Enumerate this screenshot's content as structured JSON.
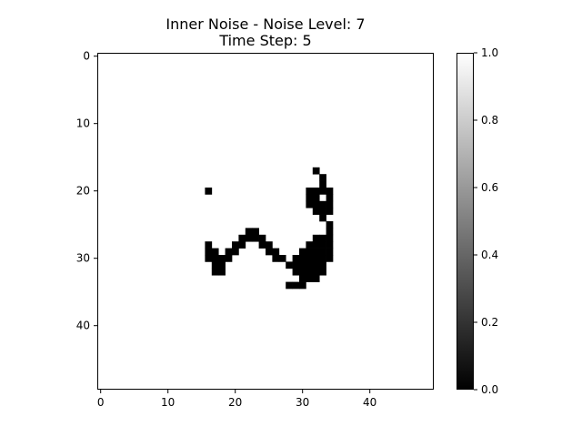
{
  "chart_data": {
    "type": "heatmap",
    "title_line1": "Inner Noise - Noise Level: 7",
    "title_line2": "Time Step: 5",
    "grid_size": 50,
    "x_ticks": [
      "0",
      "10",
      "20",
      "30",
      "40"
    ],
    "y_ticks": [
      "0",
      "10",
      "20",
      "30",
      "40"
    ],
    "colorbar": {
      "min": 0.0,
      "max": 1.0,
      "ticks": [
        "0.0",
        "0.2",
        "0.4",
        "0.6",
        "0.8",
        "1.0"
      ],
      "colormap": "gray"
    },
    "background_value": 1,
    "black_cells": [
      [
        17,
        32
      ],
      [
        18,
        33
      ],
      [
        19,
        33
      ],
      [
        20,
        16
      ],
      [
        20,
        31
      ],
      [
        20,
        32
      ],
      [
        20,
        33
      ],
      [
        20,
        34
      ],
      [
        21,
        31
      ],
      [
        21,
        32
      ],
      [
        21,
        34
      ],
      [
        22,
        31
      ],
      [
        22,
        32
      ],
      [
        22,
        33
      ],
      [
        22,
        34
      ],
      [
        23,
        32
      ],
      [
        23,
        33
      ],
      [
        23,
        34
      ],
      [
        24,
        33
      ],
      [
        25,
        34
      ],
      [
        26,
        22
      ],
      [
        26,
        23
      ],
      [
        26,
        34
      ],
      [
        27,
        21
      ],
      [
        27,
        22
      ],
      [
        27,
        23
      ],
      [
        27,
        24
      ],
      [
        27,
        32
      ],
      [
        27,
        33
      ],
      [
        27,
        34
      ],
      [
        28,
        16
      ],
      [
        28,
        20
      ],
      [
        28,
        21
      ],
      [
        28,
        24
      ],
      [
        28,
        25
      ],
      [
        28,
        31
      ],
      [
        28,
        32
      ],
      [
        28,
        33
      ],
      [
        28,
        34
      ],
      [
        29,
        16
      ],
      [
        29,
        17
      ],
      [
        29,
        19
      ],
      [
        29,
        20
      ],
      [
        29,
        25
      ],
      [
        29,
        26
      ],
      [
        29,
        30
      ],
      [
        29,
        31
      ],
      [
        29,
        32
      ],
      [
        29,
        33
      ],
      [
        29,
        34
      ],
      [
        30,
        16
      ],
      [
        30,
        17
      ],
      [
        30,
        18
      ],
      [
        30,
        19
      ],
      [
        30,
        26
      ],
      [
        30,
        27
      ],
      [
        30,
        29
      ],
      [
        30,
        30
      ],
      [
        30,
        31
      ],
      [
        30,
        32
      ],
      [
        30,
        33
      ],
      [
        30,
        34
      ],
      [
        31,
        17
      ],
      [
        31,
        18
      ],
      [
        31,
        28
      ],
      [
        31,
        29
      ],
      [
        31,
        30
      ],
      [
        31,
        31
      ],
      [
        31,
        32
      ],
      [
        31,
        33
      ],
      [
        32,
        17
      ],
      [
        32,
        18
      ],
      [
        32,
        29
      ],
      [
        32,
        30
      ],
      [
        32,
        31
      ],
      [
        32,
        32
      ],
      [
        32,
        33
      ],
      [
        33,
        30
      ],
      [
        33,
        31
      ],
      [
        33,
        32
      ],
      [
        34,
        28
      ],
      [
        34,
        29
      ],
      [
        34,
        30
      ]
    ]
  }
}
